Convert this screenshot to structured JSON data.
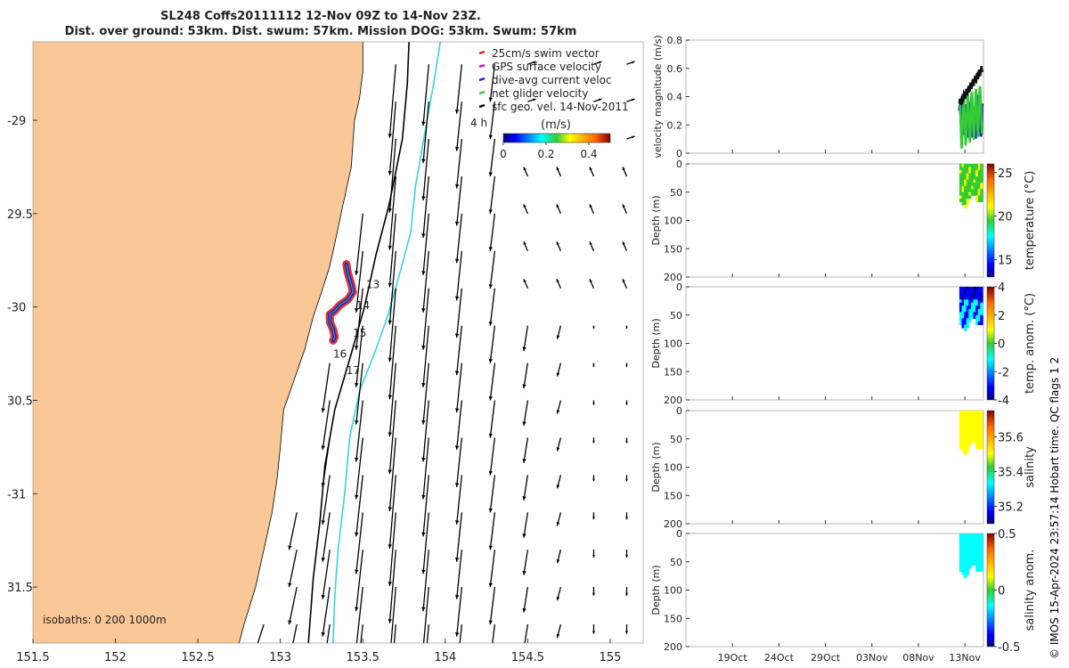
{
  "title": {
    "line1": "SL248 Coffs20111112 12-Nov 09Z to 14-Nov 23Z.",
    "line2": "Dist. over ground: 53km. Dist. swum: 57km. Mission DOG: 53km. Swum: 57km"
  },
  "footer": "© IMOS 15-Apr-2024 23:57:14 Hobart time. QC flags 1  2",
  "colors": {
    "land": "#f9c896",
    "isobath": "#000000",
    "isobath_cyan": "#36d4d8",
    "swim": "#e41a1c",
    "gps": "#e000e0",
    "dive": "#1f1fe0",
    "net": "#33cc33"
  },
  "chart_data": [
    {
      "type": "map",
      "name": "glider-track-map",
      "xlim": [
        151.5,
        155.2
      ],
      "ylim": [
        -31.8,
        -28.58
      ],
      "x_ticks": [
        151.5,
        152,
        152.5,
        153,
        153.5,
        154,
        154.5,
        155
      ],
      "x_tick_labels": [
        "151.5",
        "152",
        "152.5",
        "153",
        "153.5",
        "154",
        "154.5",
        "155"
      ],
      "y_ticks": [
        -29,
        -29.5,
        -30,
        -30.5,
        -31,
        -31.5
      ],
      "y_tick_labels": [
        "-29",
        "29.5",
        "-30",
        "30.5",
        "-31",
        "31.5"
      ],
      "legend": {
        "placement": "top-right",
        "entries": [
          "25cm/s swim vector",
          "GPS surface velocity",
          "dive-avg current veloc",
          "net glider velocity",
          "sfc geo. vel. 14-Nov-2011"
        ]
      },
      "colorbar": {
        "label": "(m/s)",
        "ticks": [
          0,
          0.2,
          0.4
        ],
        "tick_labels": [
          "0",
          "0.2",
          "0.4"
        ],
        "range": [
          0,
          0.5
        ],
        "extra_label": "4 h"
      },
      "isobath_note": "isobaths: 0   200  1000m",
      "coastline": [
        [
          153.5,
          -28.58
        ],
        [
          153.5,
          -28.74
        ],
        [
          153.48,
          -28.88
        ],
        [
          153.45,
          -29.0
        ],
        [
          153.43,
          -29.25
        ],
        [
          153.38,
          -29.45
        ],
        [
          153.34,
          -29.62
        ],
        [
          153.3,
          -29.78
        ],
        [
          153.25,
          -29.92
        ],
        [
          153.2,
          -30.05
        ],
        [
          153.15,
          -30.22
        ],
        [
          153.08,
          -30.4
        ],
        [
          153.02,
          -30.55
        ],
        [
          153.0,
          -30.75
        ],
        [
          152.98,
          -30.92
        ],
        [
          152.95,
          -31.1
        ],
        [
          152.9,
          -31.3
        ],
        [
          152.85,
          -31.5
        ],
        [
          152.78,
          -31.7
        ],
        [
          152.75,
          -31.8
        ]
      ],
      "isobath_200": [
        [
          153.78,
          -28.58
        ],
        [
          153.77,
          -28.8
        ],
        [
          153.74,
          -29.1
        ],
        [
          153.66,
          -29.45
        ],
        [
          153.58,
          -29.72
        ],
        [
          153.51,
          -30.0
        ],
        [
          153.43,
          -30.25
        ],
        [
          153.33,
          -30.55
        ],
        [
          153.27,
          -30.85
        ],
        [
          153.24,
          -31.15
        ],
        [
          153.2,
          -31.45
        ],
        [
          153.17,
          -31.8
        ]
      ],
      "isobath_1000": [
        [
          153.97,
          -28.58
        ],
        [
          153.93,
          -28.8
        ],
        [
          153.88,
          -29.05
        ],
        [
          153.82,
          -29.35
        ],
        [
          153.79,
          -29.6
        ],
        [
          153.73,
          -29.8
        ],
        [
          153.65,
          -30.05
        ],
        [
          153.57,
          -30.25
        ],
        [
          153.48,
          -30.45
        ],
        [
          153.42,
          -30.7
        ],
        [
          153.39,
          -31.0
        ],
        [
          153.35,
          -31.3
        ],
        [
          153.33,
          -31.55
        ],
        [
          153.32,
          -31.8
        ]
      ],
      "track": [
        [
          153.4,
          -29.77
        ],
        [
          153.41,
          -29.82
        ],
        [
          153.43,
          -29.88
        ],
        [
          153.44,
          -29.92
        ],
        [
          153.41,
          -29.96
        ],
        [
          153.36,
          -29.99
        ],
        [
          153.33,
          -30.02
        ],
        [
          153.3,
          -30.04
        ],
        [
          153.3,
          -30.08
        ],
        [
          153.32,
          -30.12
        ],
        [
          153.33,
          -30.16
        ],
        [
          153.32,
          -30.18
        ]
      ],
      "day_labels": [
        {
          "text": "13",
          "lon": 153.52,
          "lat": -29.9
        },
        {
          "text": "14",
          "lon": 153.46,
          "lat": -30.01
        },
        {
          "text": "15",
          "lon": 153.44,
          "lat": -30.16
        },
        {
          "text": "16",
          "lon": 153.32,
          "lat": -30.27
        },
        {
          "text": "17",
          "lon": 153.4,
          "lat": -30.36
        }
      ]
    },
    {
      "type": "line",
      "name": "velocity-magnitude",
      "ylabel": "velocity magnitude (m/s)",
      "ylim": [
        0,
        0.8
      ],
      "y_ticks": [
        0,
        0.2,
        0.4,
        0.6,
        0.8
      ],
      "y_tick_labels": [
        "0",
        "0.2",
        "0.4",
        "0.6",
        "0.8"
      ]
    },
    {
      "type": "heatmap",
      "name": "temperature",
      "ylabel": "Depth (m)",
      "colorbar_label": "temperature (°C)",
      "colorbar_ticks": [
        15,
        20,
        25
      ],
      "colorbar_tick_labels": [
        "15",
        "20",
        "25"
      ],
      "colorbar_range": [
        13,
        26
      ],
      "ylim": [
        0,
        200
      ],
      "y_ticks": [
        0,
        50,
        100,
        150,
        200
      ],
      "y_tick_labels": [
        "0",
        "50",
        "100",
        "150",
        "200"
      ]
    },
    {
      "type": "heatmap",
      "name": "temp-anomaly",
      "ylabel": "Depth (m)",
      "colorbar_label": "temp. anom. (°C)",
      "colorbar_ticks": [
        -4,
        -2,
        0,
        2,
        4
      ],
      "colorbar_tick_labels": [
        "-4",
        "-2",
        "0",
        "2",
        "4"
      ],
      "colorbar_range": [
        -4,
        4
      ],
      "ylim": [
        0,
        200
      ],
      "y_ticks": [
        0,
        50,
        100,
        150,
        200
      ],
      "y_tick_labels": [
        "0",
        "50",
        "100",
        "150",
        "200"
      ]
    },
    {
      "type": "heatmap",
      "name": "salinity",
      "ylabel": "Depth (m)",
      "colorbar_label": "salinity",
      "colorbar_ticks": [
        35.2,
        35.4,
        35.6
      ],
      "colorbar_tick_labels": [
        "35.2",
        "35.4",
        "35.6"
      ],
      "colorbar_range": [
        35.1,
        35.75
      ],
      "ylim": [
        0,
        200
      ],
      "y_ticks": [
        0,
        50,
        100,
        150,
        200
      ],
      "y_tick_labels": [
        "0",
        "50",
        "100",
        "150",
        "200"
      ]
    },
    {
      "type": "heatmap",
      "name": "salinity-anomaly",
      "ylabel": "Depth (m)",
      "colorbar_label": "salinity anom.",
      "colorbar_ticks": [
        -0.5,
        0,
        0.5
      ],
      "colorbar_tick_labels": [
        "-0.5",
        "0",
        "0.5"
      ],
      "colorbar_range": [
        -0.5,
        0.5
      ],
      "ylim": [
        0,
        200
      ],
      "y_ticks": [
        0,
        50,
        100,
        150,
        200
      ],
      "y_tick_labels": [
        "0",
        "50",
        "100",
        "150",
        "200"
      ],
      "x_tick_labels": [
        "19Oct",
        "24Oct",
        "29Oct",
        "03Nov",
        "08Nov",
        "13Nov"
      ]
    }
  ]
}
